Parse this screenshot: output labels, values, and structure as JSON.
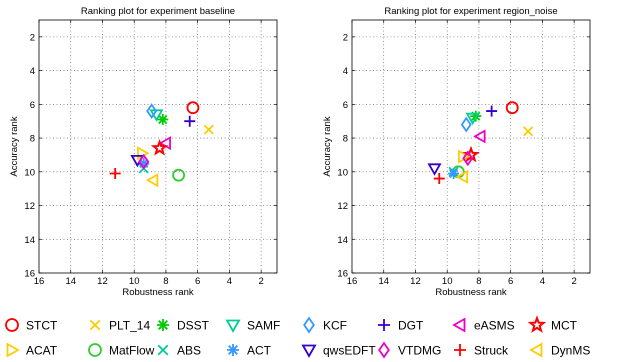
{
  "chart_data": [
    {
      "type": "scatter",
      "title": "Ranking plot for experiment baseline",
      "xlabel": "Robustness rank",
      "ylabel": "Accuracy rank",
      "xlim": [
        16,
        1
      ],
      "ylim": [
        16,
        1
      ],
      "xticks": [
        "16",
        "14",
        "12",
        "10",
        "8",
        "6",
        "4",
        "2"
      ],
      "yticks": [
        "2",
        "4",
        "6",
        "8",
        "10",
        "12",
        "14",
        "16"
      ],
      "grid": true,
      "series": [
        {
          "name": "STCT",
          "x": 6.3,
          "y": 6.2
        },
        {
          "name": "PLT_14",
          "x": 5.3,
          "y": 7.5
        },
        {
          "name": "DSST",
          "x": 8.2,
          "y": 6.9
        },
        {
          "name": "SAMF",
          "x": 8.6,
          "y": 6.6
        },
        {
          "name": "KCF",
          "x": 8.9,
          "y": 6.4
        },
        {
          "name": "DGT",
          "x": 6.5,
          "y": 7.0
        },
        {
          "name": "eASMS",
          "x": 8.0,
          "y": 8.3
        },
        {
          "name": "MCT",
          "x": 8.4,
          "y": 8.6
        },
        {
          "name": "ACAT",
          "x": 9.5,
          "y": 8.9
        },
        {
          "name": "MatFlow",
          "x": 7.2,
          "y": 10.2
        },
        {
          "name": "ABS",
          "x": 9.4,
          "y": 9.8
        },
        {
          "name": "ACT",
          "x": 9.4,
          "y": 9.5
        },
        {
          "name": "qwsEDFT",
          "x": 9.8,
          "y": 9.3
        },
        {
          "name": "VTDMG",
          "x": 9.4,
          "y": 9.4
        },
        {
          "name": "Struck",
          "x": 11.2,
          "y": 10.1
        },
        {
          "name": "DynMS",
          "x": 8.8,
          "y": 10.5
        }
      ]
    },
    {
      "type": "scatter",
      "title": "Ranking plot for experiment region_noise",
      "xlabel": "Robustness rank",
      "ylabel": "Accuracy rank",
      "xlim": [
        16,
        1
      ],
      "ylim": [
        16,
        1
      ],
      "xticks": [
        "16",
        "14",
        "12",
        "10",
        "8",
        "6",
        "4",
        "2"
      ],
      "yticks": [
        "2",
        "4",
        "6",
        "8",
        "10",
        "12",
        "14",
        "16"
      ],
      "grid": true,
      "series": [
        {
          "name": "STCT",
          "x": 5.9,
          "y": 6.2
        },
        {
          "name": "PLT_14",
          "x": 4.9,
          "y": 7.6
        },
        {
          "name": "DSST",
          "x": 8.2,
          "y": 6.7
        },
        {
          "name": "SAMF",
          "x": 8.4,
          "y": 6.8
        },
        {
          "name": "KCF",
          "x": 8.8,
          "y": 7.2
        },
        {
          "name": "DGT",
          "x": 7.2,
          "y": 6.4
        },
        {
          "name": "eASMS",
          "x": 7.9,
          "y": 7.9
        },
        {
          "name": "MCT",
          "x": 8.5,
          "y": 9.0
        },
        {
          "name": "ACAT",
          "x": 9.0,
          "y": 9.1
        },
        {
          "name": "MatFlow",
          "x": 9.3,
          "y": 10.0
        },
        {
          "name": "ABS",
          "x": 9.6,
          "y": 10.0
        },
        {
          "name": "ACT",
          "x": 9.6,
          "y": 10.1
        },
        {
          "name": "qwsEDFT",
          "x": 10.8,
          "y": 9.8
        },
        {
          "name": "VTDMG",
          "x": 8.7,
          "y": 9.2
        },
        {
          "name": "Struck",
          "x": 10.5,
          "y": 10.4
        },
        {
          "name": "DynMS",
          "x": 9.0,
          "y": 10.3
        }
      ]
    }
  ],
  "legend": [
    {
      "label": "STCT",
      "marker": "circle",
      "color": "#ff0000"
    },
    {
      "label": "PLT_14",
      "marker": "x",
      "color": "#ffcc00"
    },
    {
      "label": "DSST",
      "marker": "asterisk",
      "color": "#00cc00"
    },
    {
      "label": "SAMF",
      "marker": "triangle-down",
      "color": "#00cc99"
    },
    {
      "label": "KCF",
      "marker": "diamond",
      "color": "#3399ff"
    },
    {
      "label": "DGT",
      "marker": "plus",
      "color": "#3300cc"
    },
    {
      "label": "eASMS",
      "marker": "triangle-left",
      "color": "#ee00cc"
    },
    {
      "label": "MCT",
      "marker": "star",
      "color": "#ff0000"
    },
    {
      "label": "ACAT",
      "marker": "triangle-right",
      "color": "#ffcc00"
    },
    {
      "label": "MatFlow",
      "marker": "circle",
      "color": "#33cc33"
    },
    {
      "label": "ABS",
      "marker": "x",
      "color": "#00cc99"
    },
    {
      "label": "ACT",
      "marker": "asterisk",
      "color": "#3399ff"
    },
    {
      "label": "qwsEDFT",
      "marker": "triangle-down",
      "color": "#3300cc"
    },
    {
      "label": "VTDMG",
      "marker": "diamond",
      "color": "#ee00cc"
    },
    {
      "label": "Struck",
      "marker": "plus",
      "color": "#ff0000"
    },
    {
      "label": "DynMS",
      "marker": "triangle-left",
      "color": "#ffcc00"
    }
  ]
}
